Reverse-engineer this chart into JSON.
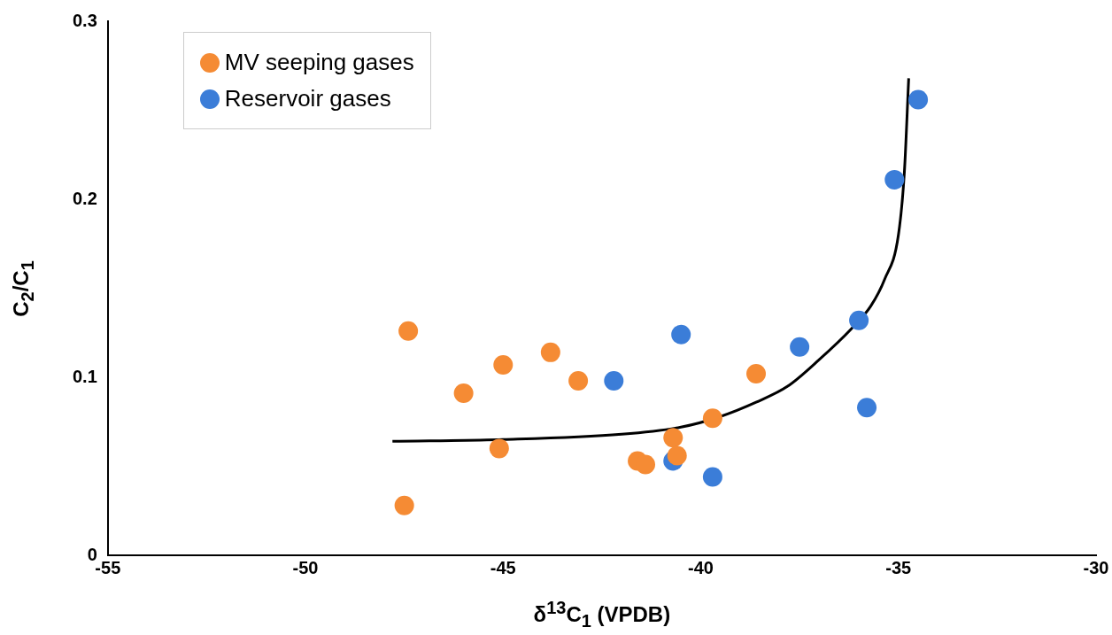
{
  "chart_data": {
    "type": "scatter",
    "xlabel": "δ$^{13}$C$_{1}$  (VPDB)",
    "ylabel": "C$_{2}$/C$_{1}$",
    "xlim": [
      -55,
      -30
    ],
    "xticks": [
      -55,
      -50,
      -45,
      -40,
      -35,
      -30
    ],
    "ylim": [
      0,
      0.3
    ],
    "yticks": [
      0,
      0.1,
      0.2,
      0.3
    ],
    "grid": false,
    "legend": "top left",
    "marker": "circle",
    "series": [
      {
        "name": "MV seeping gases",
        "color": "#f58b34",
        "x": [
          -47.5,
          -47.4,
          -46.0,
          -45.0,
          -45.1,
          -43.8,
          -43.1,
          -38.6,
          -39.7,
          -40.7,
          -40.6,
          -41.6,
          -41.4
        ],
        "values": [
          0.028,
          0.126,
          0.091,
          0.107,
          0.06,
          0.114,
          0.098,
          0.102,
          0.077,
          0.066,
          0.056,
          0.053,
          0.051
        ]
      },
      {
        "name": "Reservoir gases",
        "color": "#3b7dd8",
        "x": [
          -34.5,
          -35.1,
          -36.0,
          -37.5,
          -35.8,
          -40.5,
          -42.2,
          -40.7,
          -39.7
        ],
        "values": [
          0.256,
          0.211,
          0.132,
          0.117,
          0.083,
          0.124,
          0.098,
          0.053,
          0.044
        ]
      },
      {
        "type": "line",
        "color": "#000000",
        "marker": "none",
        "x": [
          -47.8,
          -45,
          -42,
          -40.5,
          -39.5,
          -38.6,
          -37.8,
          -37,
          -36.2,
          -35.7,
          -35.35,
          -35.0,
          -34.85,
          -34.74
        ],
        "values": [
          0.064,
          0.065,
          0.068,
          0.072,
          0.078,
          0.086,
          0.095,
          0.11,
          0.127,
          0.14,
          0.155,
          0.18,
          0.215,
          0.268
        ]
      }
    ]
  }
}
